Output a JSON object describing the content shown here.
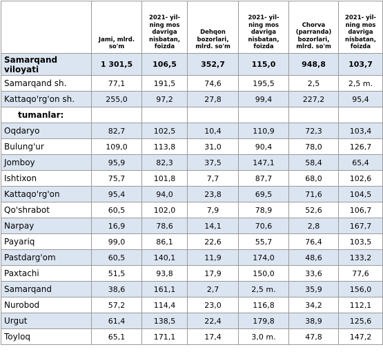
{
  "header": {
    "columns": [
      "Jami, mlrd. so'm",
      "2021- yil-ning mos davriga nisbatan, foizda",
      "Dehqon bozorlari, mlrd. so'm",
      "2021- yil-ning mos davriga nisbatan, foizda",
      "Chorva (parranda) bozorlari, mlrd. so'm",
      "2021- yil-ning mos davriga nisbatan, foizda"
    ]
  },
  "table": {
    "rows": [
      {
        "label": "Samarqand viloyati",
        "cells": [
          "1 301,5",
          "106,5",
          "352,7",
          "115,0",
          "948,8",
          "103,7"
        ]
      },
      {
        "label": "Samarqand sh.",
        "cells": [
          "77,1",
          "191,5",
          "74,6",
          "195,5",
          "2,5",
          "2,5 m."
        ]
      },
      {
        "label": "Kattaqo'rg'on  sh.",
        "cells": [
          "255,0",
          "97,2",
          "27,8",
          "99,4",
          "227,2",
          "95,4"
        ]
      },
      {
        "label": "tumanlar:"
      },
      {
        "label": "Oqdaryo",
        "cells": [
          "82,7",
          "102,5",
          "10,4",
          "110,9",
          "72,3",
          "103,4"
        ]
      },
      {
        "label": "Bulung'ur",
        "cells": [
          "109,0",
          "113,8",
          "31,0",
          "90,4",
          "78,0",
          "126,7"
        ]
      },
      {
        "label": "Jomboy",
        "cells": [
          "95,9",
          "82,3",
          "37,5",
          "147,1",
          "58,4",
          "65,4"
        ]
      },
      {
        "label": "Ishtixon",
        "cells": [
          "75,7",
          "101,8",
          "7,7",
          "87,7",
          "68,0",
          "102,6"
        ]
      },
      {
        "label": "Kattaqo'rg'on",
        "cells": [
          "95,4",
          "94,0",
          "23,8",
          "69,5",
          "71,6",
          "104,5"
        ]
      },
      {
        "label": "Qo'shrabot",
        "cells": [
          "60,5",
          "102,0",
          "7,9",
          "78,9",
          "52,6",
          "106,7"
        ]
      },
      {
        "label": "Narpay",
        "cells": [
          "16,9",
          "78,6",
          "14,1",
          "70,6",
          "2,8",
          "167,7"
        ]
      },
      {
        "label": "Payariq",
        "cells": [
          "99,0",
          "86,1",
          "22,6",
          "55,7",
          "76,4",
          "103,5"
        ]
      },
      {
        "label": "Pastdarg'om",
        "cells": [
          "60,5",
          "140,1",
          "11,9",
          "174,0",
          "48,6",
          "133,2"
        ]
      },
      {
        "label": "Paxtachi",
        "cells": [
          "51,5",
          "93,8",
          "17,9",
          "150,0",
          "33,6",
          "77,6"
        ]
      },
      {
        "label": "Samarqand",
        "cells": [
          "38,6",
          "161,1",
          "2,7",
          "2,5 m.",
          "35,9",
          "156,0"
        ]
      },
      {
        "label": "Nurobod",
        "cells": [
          "57,2",
          "114,4",
          "23,0",
          "116,8",
          "34,2",
          "112,1"
        ]
      },
      {
        "label": "Urgut",
        "cells": [
          "61,4",
          "138,5",
          "22,4",
          "179,8",
          "38,9",
          "125,6"
        ]
      },
      {
        "label": "Toyloq",
        "cells": [
          "65,1",
          "171,1",
          "17,4",
          "3,0 m.",
          "47,8",
          "147,2"
        ]
      }
    ]
  }
}
